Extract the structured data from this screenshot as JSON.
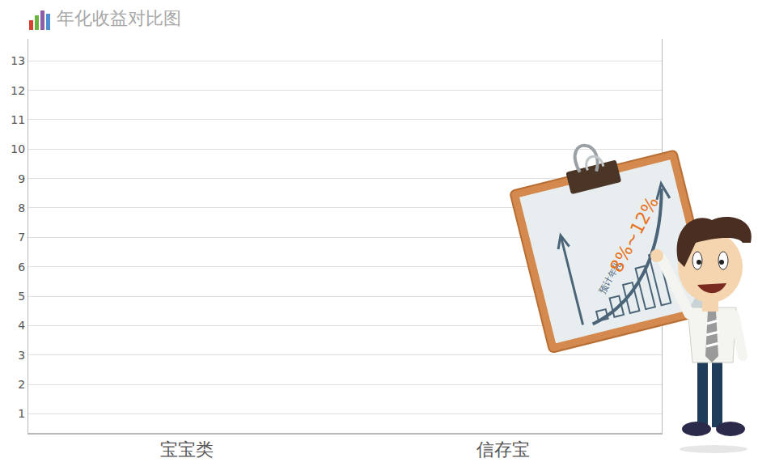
{
  "chart_data": {
    "type": "bar",
    "title": "年化收益对比图",
    "categories": [
      "宝宝类",
      "信存宝"
    ],
    "values": [
      null,
      null
    ],
    "ylim": [
      0.35,
      13.75
    ],
    "yticks": [
      1,
      2,
      3,
      4,
      5,
      6,
      7,
      8,
      9,
      10,
      11,
      12,
      13
    ],
    "grid": true,
    "annotations": [
      "预计年化",
      "8%~12%"
    ]
  }
}
